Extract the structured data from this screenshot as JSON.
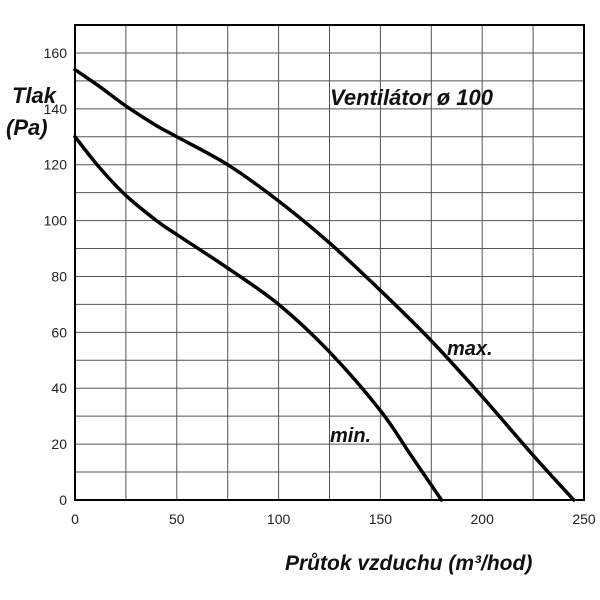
{
  "chart_data": {
    "type": "line",
    "title": "Ventilátor ø 100",
    "xlabel": "Průtok vzduchu (m³/hod)",
    "ylabel_line1": "Tlak",
    "ylabel_line2": "(Pa)",
    "xlim": [
      0,
      250
    ],
    "ylim": [
      0,
      170
    ],
    "xticks": [
      0,
      50,
      100,
      150,
      200,
      250
    ],
    "yticks": [
      0,
      20,
      40,
      60,
      80,
      100,
      120,
      140,
      160
    ],
    "grid": true,
    "series": [
      {
        "name": "max.",
        "color": "#000000",
        "points": [
          [
            0,
            154
          ],
          [
            12,
            148
          ],
          [
            25,
            141
          ],
          [
            40,
            134
          ],
          [
            50,
            130
          ],
          [
            75,
            120
          ],
          [
            100,
            107
          ],
          [
            125,
            92
          ],
          [
            150,
            75
          ],
          [
            175,
            57
          ],
          [
            200,
            37
          ],
          [
            225,
            16
          ],
          [
            245,
            0
          ]
        ]
      },
      {
        "name": "min.",
        "color": "#000000",
        "points": [
          [
            0,
            130
          ],
          [
            12,
            119
          ],
          [
            25,
            109
          ],
          [
            40,
            100
          ],
          [
            50,
            95
          ],
          [
            75,
            83
          ],
          [
            100,
            70
          ],
          [
            125,
            53
          ],
          [
            150,
            32
          ],
          [
            165,
            16
          ],
          [
            180,
            0
          ]
        ]
      }
    ]
  }
}
